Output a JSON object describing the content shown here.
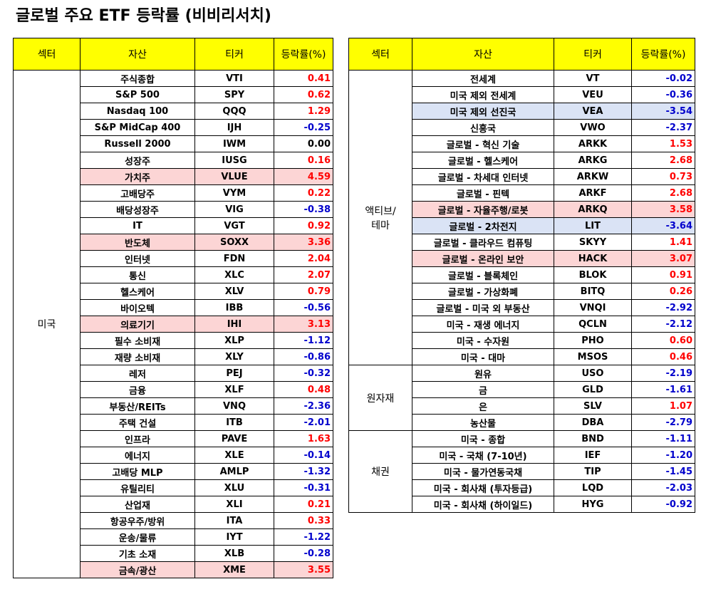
{
  "title": "글로벌 주요 ETF 등락률 (비비리서치)",
  "headers": {
    "sector": "섹터",
    "asset": "자산",
    "ticker": "티커",
    "rate": "등락률(%)"
  },
  "colors": {
    "header_bg": "#ffff00",
    "positive": "#ff0000",
    "negative": "#0000cc",
    "highlight_red": "#fcd5d5",
    "highlight_blue": "#dae3f5"
  },
  "left_table": {
    "groups": [
      {
        "sector": "미국",
        "rows": [
          {
            "asset": "주식종합",
            "ticker": "VTI",
            "rate": "0.41"
          },
          {
            "asset": "S&P 500",
            "ticker": "SPY",
            "rate": "0.62"
          },
          {
            "asset": "Nasdaq 100",
            "ticker": "QQQ",
            "rate": "1.29"
          },
          {
            "asset": "S&P MidCap 400",
            "ticker": "IJH",
            "rate": "-0.25"
          },
          {
            "asset": "Russell 2000",
            "ticker": "IWM",
            "rate": "0.00"
          },
          {
            "asset": "성장주",
            "ticker": "IUSG",
            "rate": "0.16"
          },
          {
            "asset": "가치주",
            "ticker": "VLUE",
            "rate": "4.59",
            "highlight": "red"
          },
          {
            "asset": "고배당주",
            "ticker": "VYM",
            "rate": "0.22"
          },
          {
            "asset": "배당성장주",
            "ticker": "VIG",
            "rate": "-0.38"
          },
          {
            "asset": "IT",
            "ticker": "VGT",
            "rate": "0.92"
          },
          {
            "asset": "반도체",
            "ticker": "SOXX",
            "rate": "3.36",
            "highlight": "red"
          },
          {
            "asset": "인터넷",
            "ticker": "FDN",
            "rate": "2.04"
          },
          {
            "asset": "통신",
            "ticker": "XLC",
            "rate": "2.07"
          },
          {
            "asset": "헬스케어",
            "ticker": "XLV",
            "rate": "0.79"
          },
          {
            "asset": "바이오텍",
            "ticker": "IBB",
            "rate": "-0.56"
          },
          {
            "asset": "의료기기",
            "ticker": "IHI",
            "rate": "3.13",
            "highlight": "red"
          },
          {
            "asset": "필수 소비재",
            "ticker": "XLP",
            "rate": "-1.12"
          },
          {
            "asset": "재량 소비재",
            "ticker": "XLY",
            "rate": "-0.86"
          },
          {
            "asset": "레저",
            "ticker": "PEJ",
            "rate": "-0.32"
          },
          {
            "asset": "금융",
            "ticker": "XLF",
            "rate": "0.48"
          },
          {
            "asset": "부동산/REITs",
            "ticker": "VNQ",
            "rate": "-2.36"
          },
          {
            "asset": "주택 건설",
            "ticker": "ITB",
            "rate": "-2.01"
          },
          {
            "asset": "인프라",
            "ticker": "PAVE",
            "rate": "1.63"
          },
          {
            "asset": "에너지",
            "ticker": "XLE",
            "rate": "-0.14"
          },
          {
            "asset": "고배당 MLP",
            "ticker": "AMLP",
            "rate": "-1.32"
          },
          {
            "asset": "유틸리티",
            "ticker": "XLU",
            "rate": "-0.31"
          },
          {
            "asset": "산업재",
            "ticker": "XLI",
            "rate": "0.21"
          },
          {
            "asset": "항공우주/방위",
            "ticker": "ITA",
            "rate": "0.33"
          },
          {
            "asset": "운송/물류",
            "ticker": "IYT",
            "rate": "-1.22"
          },
          {
            "asset": "기초 소재",
            "ticker": "XLB",
            "rate": "-0.28"
          },
          {
            "asset": "금속/광산",
            "ticker": "XME",
            "rate": "3.55",
            "highlight": "red"
          }
        ]
      }
    ]
  },
  "right_table": {
    "groups": [
      {
        "sector": "액티브/\n테마",
        "rows": [
          {
            "asset": "전세계",
            "ticker": "VT",
            "rate": "-0.02"
          },
          {
            "asset": "미국 제외 전세계",
            "ticker": "VEU",
            "rate": "-0.36"
          },
          {
            "asset": "미국 제외 선진국",
            "ticker": "VEA",
            "rate": "-3.54",
            "highlight": "blue"
          },
          {
            "asset": "신흥국",
            "ticker": "VWO",
            "rate": "-2.37"
          },
          {
            "asset": "글로벌 - 혁신 기술",
            "ticker": "ARKK",
            "rate": "1.53"
          },
          {
            "asset": "글로벌 - 헬스케어",
            "ticker": "ARKG",
            "rate": "2.68"
          },
          {
            "asset": "글로벌 - 차세대 인터넷",
            "ticker": "ARKW",
            "rate": "0.73"
          },
          {
            "asset": "글로벌 - 핀텍",
            "ticker": "ARKF",
            "rate": "2.68"
          },
          {
            "asset": "글로벌 - 자율주행/로봇",
            "ticker": "ARKQ",
            "rate": "3.58",
            "highlight": "red"
          },
          {
            "asset": "글로벌 - 2차전지",
            "ticker": "LIT",
            "rate": "-3.64",
            "highlight": "blue"
          },
          {
            "asset": "글로벌 - 클라우드 컴퓨팅",
            "ticker": "SKYY",
            "rate": "1.41"
          },
          {
            "asset": "글로벌 - 온라인 보안",
            "ticker": "HACK",
            "rate": "3.07",
            "highlight": "red"
          },
          {
            "asset": "글로벌 - 블록체인",
            "ticker": "BLOK",
            "rate": "0.91"
          },
          {
            "asset": "글로벌 - 가상화폐",
            "ticker": "BITQ",
            "rate": "0.26"
          },
          {
            "asset": "글로벌 - 미국 외 부동산",
            "ticker": "VNQI",
            "rate": "-2.92"
          },
          {
            "asset": "미국 - 재생 에너지",
            "ticker": "QCLN",
            "rate": "-2.12"
          },
          {
            "asset": "미국 - 수자원",
            "ticker": "PHO",
            "rate": "0.60"
          },
          {
            "asset": "미국 - 대마",
            "ticker": "MSOS",
            "rate": "0.46"
          }
        ]
      },
      {
        "sector": "원자재",
        "rows": [
          {
            "asset": "원유",
            "ticker": "USO",
            "rate": "-2.19"
          },
          {
            "asset": "금",
            "ticker": "GLD",
            "rate": "-1.61"
          },
          {
            "asset": "은",
            "ticker": "SLV",
            "rate": "1.07"
          },
          {
            "asset": "농산물",
            "ticker": "DBA",
            "rate": "-2.79"
          }
        ]
      },
      {
        "sector": "채권",
        "rows": [
          {
            "asset": "미국 - 종합",
            "ticker": "BND",
            "rate": "-1.11"
          },
          {
            "asset": "미국 - 국채 (7-10년)",
            "ticker": "IEF",
            "rate": "-1.20"
          },
          {
            "asset": "미국 - 물가연동국채",
            "ticker": "TIP",
            "rate": "-1.45"
          },
          {
            "asset": "미국 - 회사채 (투자등급)",
            "ticker": "LQD",
            "rate": "-2.03"
          },
          {
            "asset": "미국 - 회사채 (하이일드)",
            "ticker": "HYG",
            "rate": "-0.92"
          }
        ]
      }
    ]
  }
}
